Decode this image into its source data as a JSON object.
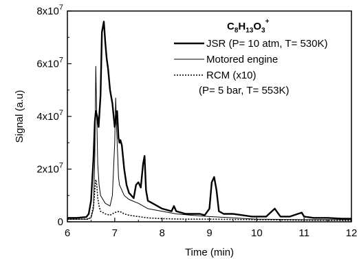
{
  "chart_data": {
    "type": "line",
    "title": "",
    "xlabel": "Time (min)",
    "ylabel": "Signal (a.u)",
    "xlim": [
      6,
      12
    ],
    "ylim": [
      0,
      80000000
    ],
    "x_ticks": [
      "6",
      "7",
      "8",
      "9",
      "10",
      "11",
      "12"
    ],
    "y_ticks": [
      {
        "base": "0",
        "exp": ""
      },
      {
        "base": "2x10",
        "exp": "7"
      },
      {
        "base": "4x10",
        "exp": "7"
      },
      {
        "base": "6x10",
        "exp": "7"
      },
      {
        "base": "8x10",
        "exp": "7"
      }
    ],
    "grid": false,
    "legend_position": "top-right",
    "annotation": {
      "formula_parts": [
        "C",
        "8",
        "H",
        "13",
        "O",
        "3",
        "+"
      ]
    },
    "series": [
      {
        "name": "JSR (P= 10 atm, T= 530K)",
        "style": "thick-solid",
        "color": "#000000",
        "x": [
          6.0,
          6.2,
          6.4,
          6.45,
          6.5,
          6.55,
          6.58,
          6.6,
          6.63,
          6.66,
          6.7,
          6.73,
          6.77,
          6.8,
          6.83,
          6.86,
          6.9,
          6.95,
          7.0,
          7.05,
          7.08,
          7.1,
          7.12,
          7.15,
          7.2,
          7.25,
          7.3,
          7.4,
          7.45,
          7.5,
          7.55,
          7.6,
          7.63,
          7.66,
          7.7,
          7.8,
          7.9,
          8.0,
          8.2,
          8.25,
          8.3,
          8.5,
          8.7,
          8.8,
          8.9,
          9.0,
          9.05,
          9.1,
          9.15,
          9.2,
          9.3,
          9.5,
          9.7,
          9.9,
          10.2,
          10.38,
          10.42,
          10.5,
          10.7,
          10.95,
          11.0,
          11.2,
          11.5,
          11.8,
          12.0
        ],
        "y": [
          1500000.0,
          1500000.0,
          1800000.0,
          3000000.0,
          8000000.0,
          24000000.0,
          38000000.0,
          42000000.0,
          40000000.0,
          36000000.0,
          48000000.0,
          72000000.0,
          76000000.0,
          68000000.0,
          62000000.0,
          58000000.0,
          50000000.0,
          45000000.0,
          36000000.0,
          42000000.0,
          32000000.0,
          30000000.0,
          31000000.0,
          29000000.0,
          20000000.0,
          14000000.0,
          11000000.0,
          9000000.0,
          14000000.0,
          15000000.0,
          13000000.0,
          22000000.0,
          25000000.0,
          12000000.0,
          8000000.0,
          7000000.0,
          6000000.0,
          5000000.0,
          4000000.0,
          6000000.0,
          4000000.0,
          3000000.0,
          3000000.0,
          3000000.0,
          2500000.0,
          5000000.0,
          15000000.0,
          17000000.0,
          12000000.0,
          4000000.0,
          3000000.0,
          3000000.0,
          2500000.0,
          2000000.0,
          2000000.0,
          5000000.0,
          4000000.0,
          2000000.0,
          2000000.0,
          3500000.0,
          2000000.0,
          1500000.0,
          1500000.0,
          1200000.0,
          1200000.0
        ]
      },
      {
        "name": "Motored engine",
        "style": "thin-solid",
        "color": "#000000",
        "x": [
          6.0,
          6.4,
          6.5,
          6.55,
          6.58,
          6.6,
          6.62,
          6.64,
          6.67,
          6.7,
          6.8,
          6.9,
          6.95,
          7.0,
          7.02,
          7.04,
          7.06,
          7.08,
          7.1,
          7.15,
          7.2,
          7.3,
          7.5,
          7.7,
          8.0,
          8.3,
          8.6,
          9.0,
          9.5,
          10.0,
          11.0,
          12.0
        ],
        "y": [
          1000000.0,
          1000000.0,
          1500000.0,
          5000000.0,
          25000000.0,
          59000000.0,
          40000000.0,
          22000000.0,
          14000000.0,
          10000000.0,
          7000000.0,
          6000000.0,
          10000000.0,
          30000000.0,
          47000000.0,
          35000000.0,
          26000000.0,
          17000000.0,
          14000000.0,
          12000000.0,
          10000000.0,
          8500000.0,
          7000000.0,
          5000000.0,
          4000000.0,
          3000000.0,
          2500000.0,
          2000000.0,
          1500000.0,
          1000000.0,
          800000.0,
          800000.0
        ]
      },
      {
        "name": "RCM (x10)",
        "name_line2": "(P= 5 bar, T= 553K)",
        "style": "dotted",
        "color": "#000000",
        "x": [
          6.0,
          6.45,
          6.5,
          6.55,
          6.58,
          6.6,
          6.62,
          6.64,
          6.67,
          6.7,
          6.75,
          6.8,
          6.9,
          7.0,
          7.1,
          7.2,
          7.3,
          7.5,
          7.7,
          8.0,
          8.5,
          9.0,
          10.0,
          11.0,
          12.0
        ],
        "y": [
          1000000.0,
          1000000.0,
          2000000.0,
          6000000.0,
          12000000.0,
          16000000.0,
          14000000.0,
          9000000.0,
          6000000.0,
          4000000.0,
          3500000.0,
          3000000.0,
          2500000.0,
          3500000.0,
          4000000.0,
          3000000.0,
          2500000.0,
          2000000.0,
          1500000.0,
          1200000.0,
          1000000.0,
          1000000.0,
          800000.0,
          600000.0,
          500000.0
        ]
      }
    ]
  }
}
